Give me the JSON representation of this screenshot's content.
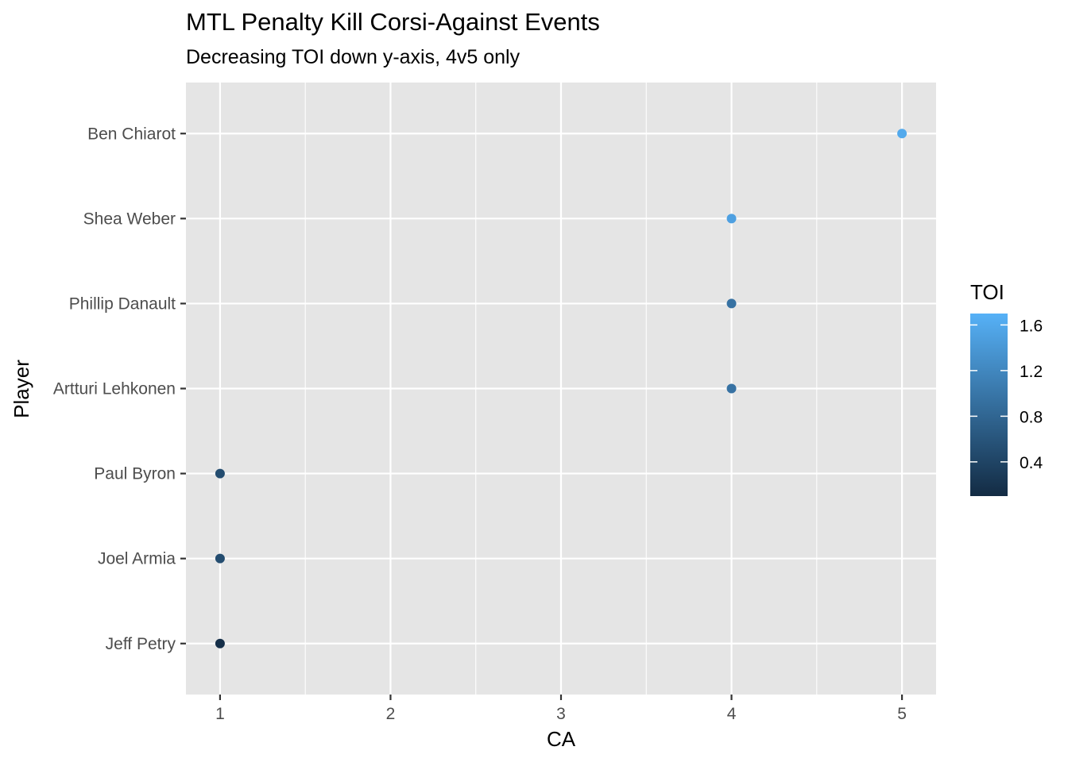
{
  "chart_data": {
    "type": "scatter",
    "title": "MTL Penalty Kill Corsi-Against Events",
    "subtitle": "Decreasing TOI down y-axis, 4v5 only",
    "xlabel": "CA",
    "ylabel": "Player",
    "xlim": [
      0.8,
      5.2
    ],
    "x_ticks": [
      "1",
      "2",
      "3",
      "4",
      "5"
    ],
    "categories": [
      "Ben Chiarot",
      "Shea Weber",
      "Phillip Danault",
      "Artturi Lehkonen",
      "Paul Byron",
      "Joel Armia",
      "Jeff Petry"
    ],
    "points": [
      {
        "player": "Ben Chiarot",
        "CA": 5,
        "TOI": 1.6
      },
      {
        "player": "Shea Weber",
        "CA": 4,
        "TOI": 1.5
      },
      {
        "player": "Phillip Danault",
        "CA": 4,
        "TOI": 0.95
      },
      {
        "player": "Artturi Lehkonen",
        "CA": 4,
        "TOI": 0.95
      },
      {
        "player": "Paul Byron",
        "CA": 1,
        "TOI": 0.5
      },
      {
        "player": "Joel Armia",
        "CA": 1,
        "TOI": 0.5
      },
      {
        "player": "Jeff Petry",
        "CA": 1,
        "TOI": 0.15
      }
    ],
    "legend": {
      "title": "TOI",
      "position": "right",
      "range": [
        0.1,
        1.7
      ],
      "ticks": [
        "0.4",
        "0.8",
        "1.2",
        "1.6"
      ],
      "color_low": "#132B43",
      "color_high": "#56B1F7"
    },
    "grid": true,
    "panel_background": "#e5e5e5",
    "grid_color": "#ffffff"
  }
}
